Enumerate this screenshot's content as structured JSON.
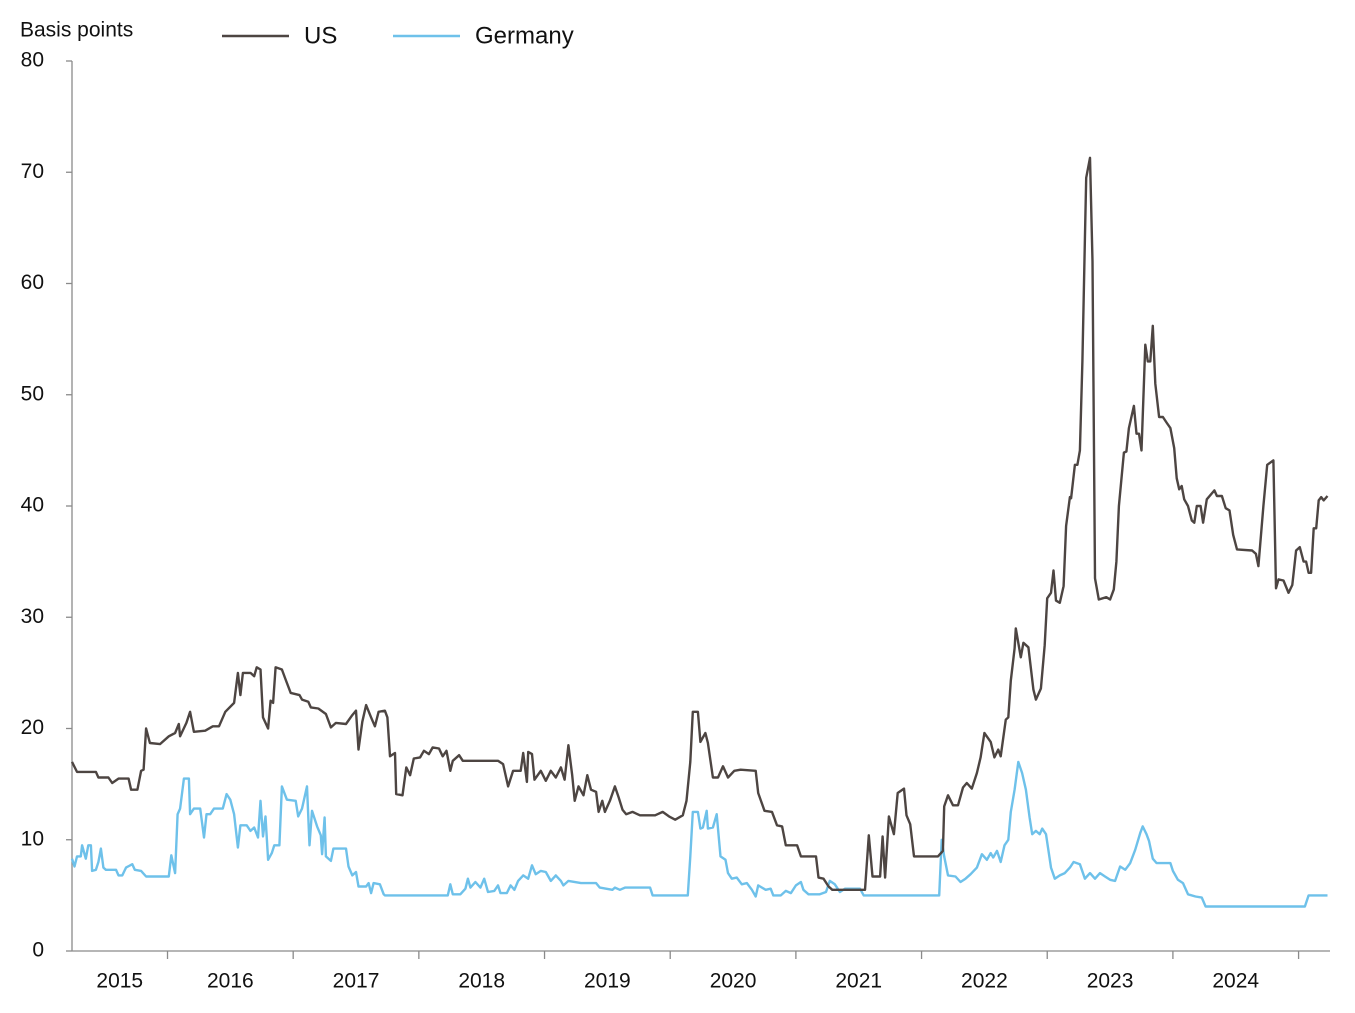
{
  "chart_data": {
    "type": "line",
    "y_label": "Basis points",
    "xlim": [
      2015.24,
      2025.25
    ],
    "ylim": [
      0,
      80
    ],
    "yticks": [
      0,
      10,
      20,
      30,
      40,
      50,
      60,
      70,
      80
    ],
    "xticks": [
      2016,
      2017,
      2018,
      2019,
      2020,
      2021,
      2022,
      2023,
      2024,
      2025
    ],
    "x_labels": [
      2015,
      2016,
      2017,
      2018,
      2019,
      2020,
      2021,
      2022,
      2023,
      2024
    ],
    "legend": "top",
    "series": [
      {
        "name": "US",
        "color": "#4d4542",
        "x": [
          2015.24,
          2015.28,
          2015.43,
          2015.45,
          2015.53,
          2015.56,
          2015.61,
          2015.69,
          2015.71,
          2015.76,
          2015.79,
          2015.81,
          2015.83,
          2015.86,
          2015.94,
          2016.01,
          2016.06,
          2016.09,
          2016.1,
          2016.15,
          2016.18,
          2016.21,
          2016.3,
          2016.36,
          2016.41,
          2016.46,
          2016.53,
          2016.56,
          2016.58,
          2016.6,
          2016.66,
          2016.69,
          2016.71,
          2016.74,
          2016.76,
          2016.8,
          2016.82,
          2016.84,
          2016.86,
          2016.91,
          2016.94,
          2016.98,
          2017.05,
          2017.07,
          2017.12,
          2017.14,
          2017.2,
          2017.26,
          2017.3,
          2017.34,
          2017.42,
          2017.47,
          2017.5,
          2017.52,
          2017.55,
          2017.58,
          2017.62,
          2017.65,
          2017.68,
          2017.73,
          2017.75,
          2017.77,
          2017.81,
          2017.82,
          2017.87,
          2017.9,
          2017.93,
          2017.96,
          2018.01,
          2018.04,
          2018.08,
          2018.11,
          2018.16,
          2018.19,
          2018.22,
          2018.25,
          2018.27,
          2018.32,
          2018.35,
          2018.63,
          2018.67,
          2018.71,
          2018.75,
          2018.81,
          2018.83,
          2018.86,
          2018.87,
          2018.9,
          2018.92,
          2018.97,
          2019.01,
          2019.05,
          2019.09,
          2019.13,
          2019.16,
          2019.19,
          2019.22,
          2019.24,
          2019.27,
          2019.31,
          2019.34,
          2019.37,
          2019.41,
          2019.43,
          2019.46,
          2019.48,
          2019.52,
          2019.56,
          2019.59,
          2019.62,
          2019.65,
          2019.7,
          2019.76,
          2019.88,
          2019.94,
          2019.99,
          2020.04,
          2020.1,
          2020.13,
          2020.16,
          2020.18,
          2020.22,
          2020.24,
          2020.28,
          2020.3,
          2020.34,
          2020.38,
          2020.42,
          2020.46,
          2020.51,
          2020.56,
          2020.68,
          2020.7,
          2020.75,
          2020.81,
          2020.85,
          2020.89,
          2020.92,
          2021.01,
          2021.04,
          2021.16,
          2021.18,
          2021.22,
          2021.26,
          2021.29,
          2021.55,
          2021.58,
          2021.61,
          2021.67,
          2021.69,
          2021.71,
          2021.74,
          2021.78,
          2021.81,
          2021.86,
          2021.88,
          2021.91,
          2021.94,
          2022.13,
          2022.17,
          2022.18,
          2022.21,
          2022.25,
          2022.29,
          2022.33,
          2022.36,
          2022.4,
          2022.44,
          2022.47,
          2022.5,
          2022.55,
          2022.58,
          2022.61,
          2022.63,
          2022.67,
          2022.69,
          2022.71,
          2022.74,
          2022.75,
          2022.79,
          2022.81,
          2022.85,
          2022.89,
          2022.91,
          2022.95,
          2022.98,
          2023.0,
          2023.03,
          2023.05,
          2023.07,
          2023.1,
          2023.13,
          2023.15,
          2023.18,
          2023.19,
          2023.22,
          2023.24,
          2023.26,
          2023.28,
          2023.3,
          2023.31,
          2023.34,
          2023.36,
          2023.38,
          2023.41,
          2023.47,
          2023.5,
          2023.53,
          2023.55,
          2023.57,
          2023.61,
          2023.63,
          2023.65,
          2023.69,
          2023.71,
          2023.73,
          2023.75,
          2023.78,
          2023.8,
          2023.82,
          2023.84,
          2023.86,
          2023.89,
          2023.92,
          2023.95,
          2023.98,
          2024.01,
          2024.03,
          2024.05,
          2024.07,
          2024.09,
          2024.12,
          2024.15,
          2024.17,
          2024.19,
          2024.22,
          2024.24,
          2024.27,
          2024.33,
          2024.35,
          2024.39,
          2024.42,
          2024.45,
          2024.48,
          2024.51,
          2024.63,
          2024.66,
          2024.68,
          2024.72,
          2024.75,
          2024.8,
          2024.82,
          2024.84,
          2024.88,
          2024.92,
          2024.95,
          2024.98,
          2025.01,
          2025.04,
          2025.06,
          2025.08,
          2025.1,
          2025.12,
          2025.14,
          2025.16,
          2025.18,
          2025.2,
          2025.23
        ],
        "values": [
          17,
          16.1,
          16.1,
          15.6,
          15.6,
          15.1,
          15.5,
          15.5,
          14.5,
          14.5,
          16.2,
          16.3,
          20,
          18.7,
          18.6,
          19.3,
          19.6,
          20.4,
          19.3,
          20.5,
          21.5,
          19.7,
          19.8,
          20.2,
          20.2,
          21.5,
          22.3,
          25,
          23,
          25,
          25,
          24.7,
          25.5,
          25.3,
          21,
          20,
          22.5,
          22.3,
          25.5,
          25.3,
          24.4,
          23.2,
          23,
          22.6,
          22.4,
          21.9,
          21.8,
          21.3,
          20.1,
          20.5,
          20.4,
          21.2,
          21.6,
          18.1,
          20.6,
          22.1,
          21,
          20.2,
          21.5,
          21.6,
          21,
          17.5,
          17.8,
          14.1,
          14,
          16.5,
          15.8,
          17.3,
          17.4,
          18,
          17.7,
          18.3,
          18.2,
          17.5,
          18,
          16.2,
          17.1,
          17.6,
          17.1,
          17.1,
          16.8,
          14.8,
          16.2,
          16.2,
          17.8,
          15.2,
          17.9,
          17.7,
          15.4,
          16.2,
          15.3,
          16.2,
          15.6,
          16.5,
          15.4,
          18.5,
          15.8,
          13.5,
          14.8,
          14,
          15.8,
          14.5,
          14.3,
          12.5,
          13.5,
          12.5,
          13.5,
          14.8,
          13.8,
          12.7,
          12.3,
          12.5,
          12.2,
          12.2,
          12.5,
          12.1,
          11.8,
          12.2,
          13.5,
          17,
          21.5,
          21.5,
          18.8,
          19.6,
          18.7,
          15.6,
          15.6,
          16.6,
          15.6,
          16.2,
          16.3,
          16.2,
          14.2,
          12.6,
          12.5,
          11.3,
          11.2,
          9.5,
          9.5,
          8.5,
          8.5,
          6.6,
          6.5,
          5.8,
          5.5,
          5.5,
          10.4,
          6.7,
          6.7,
          10.3,
          6.6,
          12.1,
          10.5,
          14.2,
          14.6,
          12.2,
          11.4,
          8.5,
          8.5,
          9,
          13,
          14,
          13.1,
          13.1,
          14.7,
          15.1,
          14.6,
          16,
          17.4,
          19.6,
          18.8,
          17.4,
          18.1,
          17.5,
          20.8,
          21,
          24.3,
          27.2,
          29,
          26.4,
          27.7,
          27.3,
          23.5,
          22.6,
          23.6,
          27.5,
          31.7,
          32.2,
          34.2,
          31.5,
          31.3,
          32.8,
          38.2,
          40.8,
          40.7,
          43.7,
          43.7,
          45,
          53,
          64,
          69.5,
          71.3,
          62,
          33.5,
          31.6,
          31.8,
          31.6,
          32.5,
          35,
          40,
          44.8,
          44.9,
          47,
          49,
          46.5,
          46.5,
          45,
          54.5,
          53,
          53,
          56.2,
          51,
          48,
          48,
          47.5,
          47,
          45.2,
          42.5,
          41.5,
          41.8,
          40.6,
          40,
          38.7,
          38.5,
          40,
          40,
          38.5,
          40.6,
          41.4,
          40.9,
          40.9,
          39.8,
          39.6,
          37.4,
          36.1,
          36,
          35.7,
          34.6,
          40,
          43.7,
          44.1,
          32.6,
          33.4,
          33.3,
          32.2,
          32.9,
          36,
          36.3,
          35,
          35,
          34,
          34,
          38,
          38,
          40.5,
          40.8,
          40.5,
          40.9
        ]
      },
      {
        "name": "Germany",
        "color": "#6ec1ea",
        "x": [
          2015.24,
          2015.26,
          2015.28,
          2015.31,
          2015.32,
          2015.35,
          2015.37,
          2015.39,
          2015.4,
          2015.43,
          2015.45,
          2015.47,
          2015.49,
          2015.51,
          2015.59,
          2015.61,
          2015.64,
          2015.67,
          2015.72,
          2015.74,
          2015.79,
          2015.83,
          2016.01,
          2016.03,
          2016.06,
          2016.08,
          2016.1,
          2016.13,
          2016.17,
          2016.18,
          2016.21,
          2016.26,
          2016.29,
          2016.31,
          2016.34,
          2016.37,
          2016.44,
          2016.47,
          2016.5,
          2016.53,
          2016.56,
          2016.58,
          2016.63,
          2016.66,
          2016.69,
          2016.72,
          2016.74,
          2016.76,
          2016.78,
          2016.8,
          2016.83,
          2016.85,
          2016.89,
          2016.91,
          2016.95,
          2017.02,
          2017.04,
          2017.07,
          2017.11,
          2017.13,
          2017.15,
          2017.19,
          2017.22,
          2017.23,
          2017.25,
          2017.26,
          2017.3,
          2017.32,
          2017.42,
          2017.44,
          2017.47,
          2017.5,
          2017.52,
          2017.58,
          2017.6,
          2017.62,
          2017.64,
          2017.69,
          2017.72,
          2017.73,
          2018.23,
          2018.25,
          2018.27,
          2018.33,
          2018.37,
          2018.39,
          2018.41,
          2018.45,
          2018.49,
          2018.52,
          2018.55,
          2018.6,
          2018.63,
          2018.65,
          2018.7,
          2018.73,
          2018.76,
          2018.79,
          2018.83,
          2018.87,
          2018.9,
          2018.93,
          2018.97,
          2019.01,
          2019.05,
          2019.09,
          2019.13,
          2019.15,
          2019.19,
          2019.29,
          2019.41,
          2019.44,
          2019.54,
          2019.56,
          2019.6,
          2019.64,
          2019.84,
          2019.86,
          2020.14,
          2020.16,
          2020.18,
          2020.22,
          2020.24,
          2020.26,
          2020.29,
          2020.3,
          2020.34,
          2020.37,
          2020.4,
          2020.44,
          2020.46,
          2020.49,
          2020.53,
          2020.57,
          2020.61,
          2020.65,
          2020.68,
          2020.7,
          2020.76,
          2020.8,
          2020.82,
          2020.88,
          2020.92,
          2020.96,
          2021.0,
          2021.04,
          2021.06,
          2021.1,
          2021.19,
          2021.24,
          2021.27,
          2021.31,
          2021.35,
          2021.39,
          2021.51,
          2021.54,
          2022.14,
          2022.16,
          2022.18,
          2022.21,
          2022.27,
          2022.31,
          2022.35,
          2022.39,
          2022.44,
          2022.48,
          2022.52,
          2022.55,
          2022.57,
          2022.6,
          2022.63,
          2022.66,
          2022.69,
          2022.71,
          2022.74,
          2022.77,
          2022.8,
          2022.83,
          2022.86,
          2022.88,
          2022.91,
          2022.94,
          2022.96,
          2022.99,
          2023.03,
          2023.06,
          2023.1,
          2023.14,
          2023.18,
          2023.21,
          2023.26,
          2023.3,
          2023.34,
          2023.38,
          2023.42,
          2023.46,
          2023.5,
          2023.54,
          2023.58,
          2023.62,
          2023.66,
          2023.7,
          2023.74,
          2023.76,
          2023.79,
          2023.81,
          2023.84,
          2023.87,
          2023.98,
          2024.0,
          2024.04,
          2024.08,
          2024.12,
          2024.18,
          2024.23,
          2024.26,
          2025.05,
          2025.08,
          2025.23
        ],
        "values": [
          8.3,
          7.6,
          8.5,
          8.5,
          9.5,
          8.3,
          9.5,
          9.5,
          7.2,
          7.3,
          8,
          9.2,
          7.5,
          7.3,
          7.3,
          6.8,
          6.8,
          7.5,
          7.8,
          7.3,
          7.2,
          6.7,
          6.7,
          8.6,
          7,
          12.3,
          12.8,
          15.5,
          15.5,
          12.3,
          12.8,
          12.8,
          10.2,
          12.3,
          12.3,
          12.8,
          12.8,
          14.1,
          13.6,
          12.3,
          9.3,
          11.3,
          11.3,
          10.8,
          11.1,
          10.2,
          13.5,
          10.3,
          12.1,
          8.2,
          8.8,
          9.5,
          9.5,
          14.8,
          13.6,
          13.5,
          12.1,
          12.8,
          14.8,
          9.5,
          12.6,
          11.2,
          10.4,
          8.7,
          12,
          8.5,
          8.1,
          9.2,
          9.2,
          7.6,
          6.8,
          7.1,
          5.8,
          5.8,
          6.1,
          5.2,
          6.1,
          6,
          5.1,
          5,
          5,
          6,
          5.1,
          5.1,
          5.6,
          6.5,
          5.7,
          6.2,
          5.7,
          6.5,
          5.3,
          5.4,
          5.9,
          5.2,
          5.2,
          5.9,
          5.5,
          6.3,
          6.8,
          6.5,
          7.7,
          6.9,
          7.2,
          7.1,
          6.3,
          6.8,
          6.3,
          5.9,
          6.3,
          6.1,
          6.1,
          5.7,
          5.5,
          5.7,
          5.5,
          5.7,
          5.7,
          5,
          5,
          8.5,
          12.5,
          12.5,
          11,
          11.1,
          12.6,
          11,
          11.1,
          12.3,
          8.5,
          8.2,
          7,
          6.5,
          6.6,
          6,
          6.1,
          5.5,
          4.9,
          5.9,
          5.5,
          5.6,
          5,
          5,
          5.4,
          5.2,
          5.9,
          6.2,
          5.5,
          5.1,
          5.1,
          5.3,
          6.3,
          6,
          5.3,
          5.6,
          5.6,
          5,
          5,
          10,
          8.5,
          6.8,
          6.7,
          6.2,
          6.5,
          6.9,
          7.5,
          8.7,
          8.2,
          8.8,
          8.4,
          9,
          8,
          9.5,
          10,
          12.5,
          14.5,
          17,
          16,
          14.5,
          12,
          10.5,
          10.8,
          10.5,
          11,
          10.5,
          7.5,
          6.5,
          6.8,
          7,
          7.5,
          8,
          7.8,
          6.5,
          7,
          6.5,
          7,
          6.7,
          6.4,
          6.3,
          7.6,
          7.3,
          7.9,
          9.1,
          10.6,
          11.2,
          10.5,
          9.9,
          8.3,
          7.9,
          7.9,
          7.2,
          6.4,
          6.1,
          5.1,
          4.9,
          4.8,
          4,
          4,
          5,
          5
        ]
      }
    ]
  }
}
